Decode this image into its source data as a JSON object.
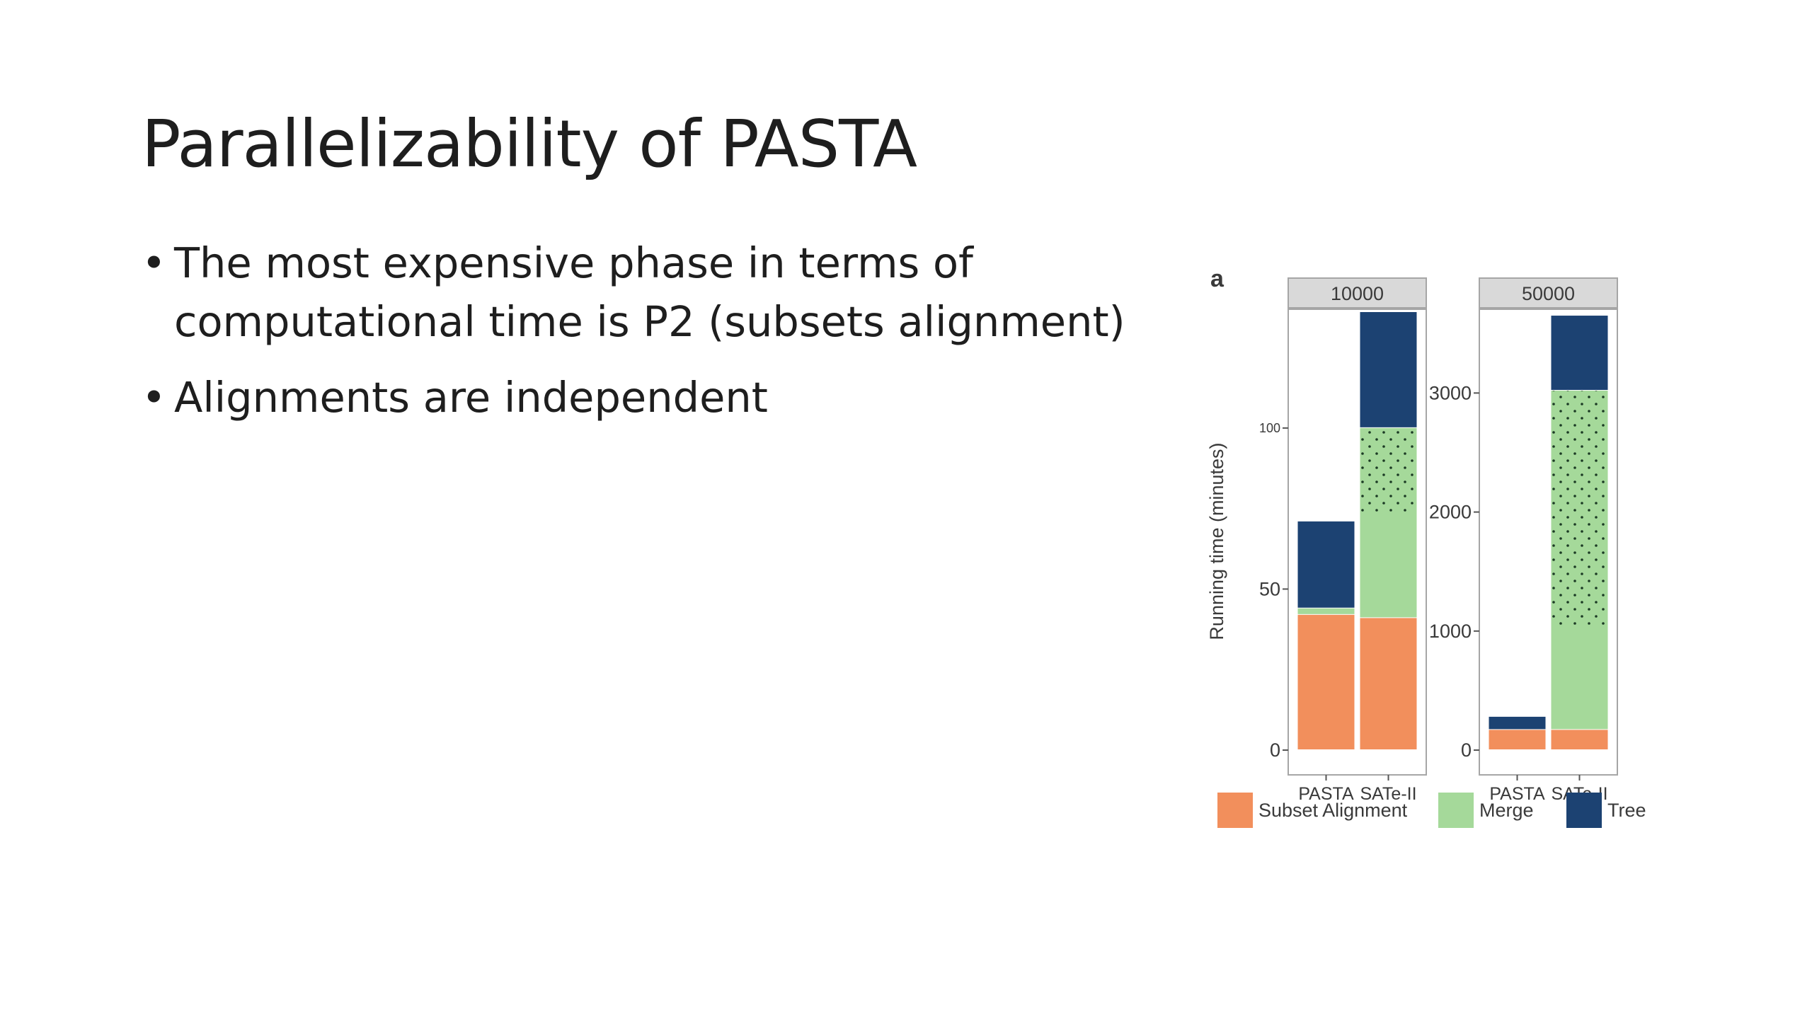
{
  "slide": {
    "title": "Parallelizability of PASTA",
    "bullets": [
      "The most expensive phase in terms of computational time is P2 (subsets alignment)",
      "Alignments are independent"
    ]
  },
  "chart_data": {
    "type": "bar",
    "stacked": true,
    "panel_label": "a",
    "ylabel": "Running time (minutes)",
    "legend_position": "bottom",
    "legend": [
      {
        "name": "Subset Alignment",
        "color": "#f28f5c"
      },
      {
        "name": "Merge",
        "color": "#a5d99a"
      },
      {
        "name": "Tree",
        "color": "#1c4272"
      }
    ],
    "panels": [
      {
        "title": "10000",
        "categories": [
          "PASTA",
          "SATe-II"
        ],
        "ylim": [
          0,
          136
        ],
        "yticks": [
          0,
          50,
          100
        ],
        "yticklabels": [
          "0",
          "50",
          "100"
        ],
        "series": [
          {
            "name": "Subset Alignment",
            "values": [
              42,
              41
            ]
          },
          {
            "name": "Merge",
            "values": [
              2,
              59
            ]
          },
          {
            "name": "Tree",
            "values": [
              27,
              36
            ]
          }
        ]
      },
      {
        "title": "50000",
        "categories": [
          "PASTA",
          "SATe-II"
        ],
        "ylim": [
          0,
          3680
        ],
        "yticks": [
          0,
          1000,
          2000,
          3000
        ],
        "yticklabels": [
          "0",
          "1000",
          "2000",
          "3000"
        ],
        "series": [
          {
            "name": "Subset Alignment",
            "values": [
              170,
              170
            ]
          },
          {
            "name": "Merge",
            "values": [
              0,
              2850
            ]
          },
          {
            "name": "Tree",
            "values": [
              110,
              630
            ]
          }
        ]
      }
    ]
  }
}
